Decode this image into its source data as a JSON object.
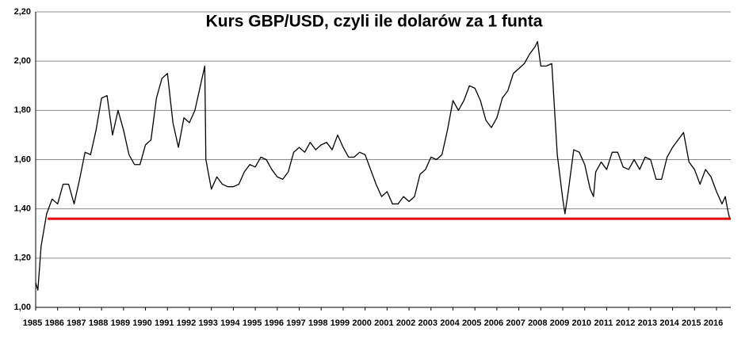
{
  "chart_data": {
    "type": "line",
    "title": "Kurs GBP/USD, czyli ile dolarów za 1 funta",
    "x": [
      1985.0,
      1985.1,
      1985.25,
      1985.5,
      1985.75,
      1986.0,
      1986.25,
      1986.5,
      1986.75,
      1987.0,
      1987.25,
      1987.5,
      1987.75,
      1988.0,
      1988.25,
      1988.5,
      1988.75,
      1989.0,
      1989.25,
      1989.5,
      1989.75,
      1990.0,
      1990.25,
      1990.5,
      1990.75,
      1991.0,
      1991.25,
      1991.5,
      1991.75,
      1992.0,
      1992.25,
      1992.5,
      1992.7,
      1992.75,
      1993.0,
      1993.25,
      1993.5,
      1993.75,
      1994.0,
      1994.25,
      1994.5,
      1994.75,
      1995.0,
      1995.25,
      1995.5,
      1995.75,
      1996.0,
      1996.25,
      1996.5,
      1996.75,
      1997.0,
      1997.25,
      1997.5,
      1997.75,
      1998.0,
      1998.25,
      1998.5,
      1998.75,
      1999.0,
      1999.25,
      1999.5,
      1999.75,
      2000.0,
      2000.25,
      2000.5,
      2000.75,
      2001.0,
      2001.25,
      2001.5,
      2001.75,
      2002.0,
      2002.25,
      2002.5,
      2002.75,
      2003.0,
      2003.25,
      2003.5,
      2003.75,
      2004.0,
      2004.25,
      2004.5,
      2004.75,
      2005.0,
      2005.25,
      2005.5,
      2005.75,
      2006.0,
      2006.25,
      2006.5,
      2006.75,
      2007.0,
      2007.25,
      2007.5,
      2007.75,
      2007.85,
      2008.0,
      2008.25,
      2008.5,
      2008.75,
      2009.0,
      2009.1,
      2009.25,
      2009.5,
      2009.75,
      2010.0,
      2010.25,
      2010.4,
      2010.5,
      2010.75,
      2011.0,
      2011.25,
      2011.5,
      2011.75,
      2012.0,
      2012.25,
      2012.5,
      2012.75,
      2013.0,
      2013.25,
      2013.5,
      2013.75,
      2014.0,
      2014.25,
      2014.5,
      2014.75,
      2015.0,
      2015.25,
      2015.5,
      2015.75,
      2016.0,
      2016.25,
      2016.4,
      2016.5,
      2016.6
    ],
    "series": [
      {
        "color": "#000000",
        "values": [
          1.1,
          1.07,
          1.25,
          1.38,
          1.44,
          1.42,
          1.5,
          1.5,
          1.42,
          1.52,
          1.63,
          1.62,
          1.72,
          1.85,
          1.86,
          1.7,
          1.8,
          1.72,
          1.62,
          1.58,
          1.58,
          1.66,
          1.68,
          1.85,
          1.93,
          1.95,
          1.75,
          1.65,
          1.77,
          1.75,
          1.8,
          1.9,
          1.98,
          1.6,
          1.48,
          1.53,
          1.5,
          1.49,
          1.49,
          1.5,
          1.55,
          1.58,
          1.57,
          1.61,
          1.6,
          1.56,
          1.53,
          1.52,
          1.55,
          1.63,
          1.65,
          1.63,
          1.67,
          1.64,
          1.66,
          1.67,
          1.64,
          1.7,
          1.65,
          1.61,
          1.61,
          1.63,
          1.62,
          1.56,
          1.5,
          1.45,
          1.47,
          1.42,
          1.42,
          1.45,
          1.43,
          1.45,
          1.54,
          1.56,
          1.61,
          1.6,
          1.62,
          1.72,
          1.84,
          1.8,
          1.84,
          1.9,
          1.89,
          1.84,
          1.76,
          1.73,
          1.77,
          1.85,
          1.88,
          1.95,
          1.97,
          1.99,
          2.03,
          2.06,
          2.08,
          1.98,
          1.98,
          1.99,
          1.62,
          1.44,
          1.38,
          1.47,
          1.64,
          1.63,
          1.58,
          1.48,
          1.45,
          1.55,
          1.59,
          1.56,
          1.63,
          1.63,
          1.57,
          1.56,
          1.6,
          1.56,
          1.61,
          1.6,
          1.52,
          1.52,
          1.61,
          1.65,
          1.68,
          1.71,
          1.59,
          1.56,
          1.5,
          1.56,
          1.53,
          1.47,
          1.42,
          1.45,
          1.4,
          1.36
        ]
      }
    ],
    "reference_line": {
      "y": 1.36,
      "x": [
        1985.55,
        2016.65
      ],
      "color": "#e00000"
    },
    "xlim": [
      1985,
      2016.65
    ],
    "xticks": [
      1985,
      1986,
      1987,
      1988,
      1989,
      1990,
      1991,
      1992,
      1993,
      1994,
      1995,
      1996,
      1997,
      1998,
      1999,
      2000,
      2001,
      2002,
      2003,
      2004,
      2005,
      2006,
      2007,
      2008,
      2009,
      2010,
      2011,
      2012,
      2013,
      2014,
      2015,
      2016
    ],
    "ylim": [
      1.0,
      2.2
    ],
    "yticks": [
      {
        "value": 1.0,
        "label": "1,00"
      },
      {
        "value": 1.2,
        "label": "1,20"
      },
      {
        "value": 1.4,
        "label": "1,40"
      },
      {
        "value": 1.6,
        "label": "1,60"
      },
      {
        "value": 1.8,
        "label": "1,80"
      },
      {
        "value": 2.0,
        "label": "2,00"
      },
      {
        "value": 2.2,
        "label": "2,20"
      }
    ],
    "grid": true
  }
}
